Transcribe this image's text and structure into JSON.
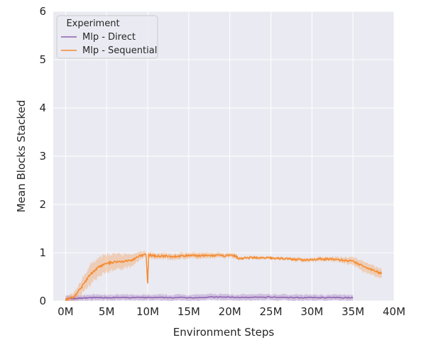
{
  "chart_data": {
    "type": "line",
    "xlabel": "Environment Steps",
    "ylabel": "Mean Blocks Stacked",
    "xlim": [
      -1500000,
      40000000
    ],
    "ylim": [
      0,
      6
    ],
    "x_ticks": [
      0,
      5000000,
      10000000,
      15000000,
      20000000,
      25000000,
      30000000,
      35000000,
      40000000
    ],
    "x_tick_labels": [
      "0M",
      "5M",
      "10M",
      "15M",
      "20M",
      "25M",
      "30M",
      "35M",
      "40M"
    ],
    "y_ticks": [
      0,
      1,
      2,
      3,
      4,
      5,
      6
    ],
    "y_tick_labels": [
      "0",
      "1",
      "2",
      "3",
      "4",
      "5",
      "6"
    ],
    "grid": true,
    "background": "#eaeaf2",
    "legend": {
      "title": "Experiment",
      "placement": "top-left"
    },
    "series": [
      {
        "name": "Mlp - Direct",
        "color": "#8e5fb0",
        "x": [
          0,
          1000000,
          2000000,
          3000000,
          4000000,
          5000000,
          6000000,
          8000000,
          10000000,
          12000000,
          15000000,
          18000000,
          20000000,
          22000000,
          25000000,
          28000000,
          30000000,
          32000000,
          34000000,
          35000000
        ],
        "y": [
          0.05,
          0.05,
          0.06,
          0.07,
          0.07,
          0.07,
          0.07,
          0.07,
          0.07,
          0.07,
          0.07,
          0.08,
          0.08,
          0.07,
          0.08,
          0.07,
          0.07,
          0.07,
          0.07,
          0.07
        ],
        "band": 0.06
      },
      {
        "name": "Mlp - Sequential",
        "color": "#f58a2e",
        "x": [
          0,
          1000000,
          2000000,
          3000000,
          4000000,
          5000000,
          6000000,
          7000000,
          8000000,
          9000000,
          9800000,
          10000000,
          10100000,
          11000000,
          12000000,
          13000000,
          14000000,
          15000000,
          16000000,
          17000000,
          18000000,
          19000000,
          20000000,
          20800000,
          21000000,
          22000000,
          23000000,
          24000000,
          25000000,
          26000000,
          27000000,
          28000000,
          29000000,
          30000000,
          31000000,
          32000000,
          33000000,
          34000000,
          35000000,
          36000000,
          37000000,
          38000000,
          38500000
        ],
        "y": [
          0.03,
          0.08,
          0.3,
          0.55,
          0.7,
          0.78,
          0.81,
          0.82,
          0.84,
          0.93,
          0.97,
          0.35,
          0.95,
          0.93,
          0.93,
          0.92,
          0.93,
          0.94,
          0.94,
          0.94,
          0.94,
          0.94,
          0.94,
          0.93,
          0.88,
          0.89,
          0.9,
          0.89,
          0.89,
          0.88,
          0.88,
          0.86,
          0.85,
          0.86,
          0.87,
          0.87,
          0.86,
          0.84,
          0.82,
          0.74,
          0.67,
          0.6,
          0.58
        ],
        "band": [
          0.06,
          0.08,
          0.15,
          0.2,
          0.2,
          0.18,
          0.16,
          0.15,
          0.13,
          0.08,
          0.05,
          0.05,
          0.06,
          0.06,
          0.06,
          0.06,
          0.06,
          0.06,
          0.06,
          0.06,
          0.05,
          0.05,
          0.05,
          0.05,
          0.03,
          0.03,
          0.03,
          0.03,
          0.03,
          0.03,
          0.03,
          0.04,
          0.04,
          0.04,
          0.04,
          0.04,
          0.05,
          0.06,
          0.08,
          0.1,
          0.1,
          0.1,
          0.1
        ]
      }
    ]
  }
}
